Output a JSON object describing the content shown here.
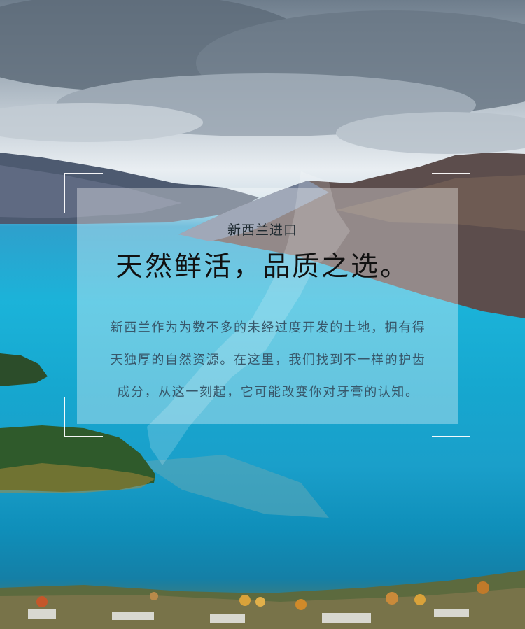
{
  "hero": {
    "subtitle": "新西兰进口",
    "title": "天然鲜活，品质之选。",
    "body_lines": [
      "新西兰作为为数不多的未经过度开发的土地，拥有得",
      "天独厚的自然资源。在这里，我们找到不一样的护齿",
      "成分，从这一刻起，它可能改变你对牙膏的认知。"
    ]
  },
  "colors": {
    "lake": "#1bb3d9",
    "mountain": "#5a5a68",
    "trees": "#2f5a2b",
    "sky": "#e9eef2"
  }
}
